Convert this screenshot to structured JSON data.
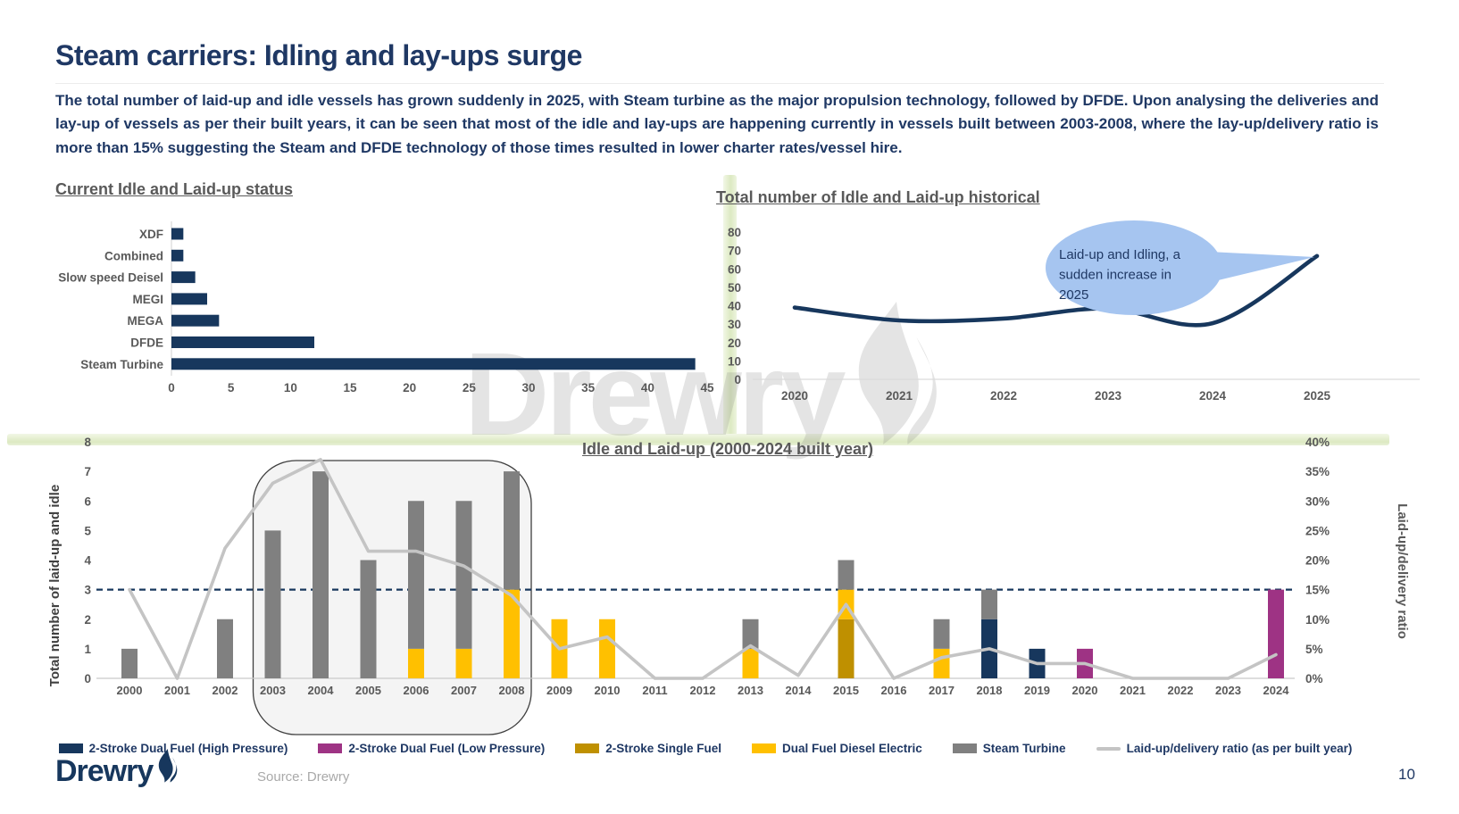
{
  "slide": {
    "title": "Steam carriers: Idling and lay-ups surge",
    "body_text": "The total number of laid-up and idle vessels has grown suddenly in 2025, with Steam turbine as the major propulsion technology, followed by DFDE. Upon analysing the deliveries and lay-up of vessels as per their built years, it can be seen that most of the idle and lay-ups are happening currently in vessels built between 2003-2008, where the lay-up/delivery ratio is more than 15% suggesting the Steam and DFDE technology of those times resulted in lower charter rates/vessel hire.",
    "watermark_text": "Drewry",
    "logo_text": "Drewry",
    "source": "Source: Drewry",
    "page_number": "10"
  },
  "colors": {
    "navy": "#17375D",
    "title_navy": "#1F3864",
    "heading_gray": "#595959",
    "tick_gray": "#595959",
    "axis_label_dark": "#404040",
    "axis_line": "#D9D9D9",
    "ratio_line_gray": "#C4C4C4",
    "callout_fill": "#A6C5F0",
    "highlight_stroke": "#3F3F3F",
    "watermark_gray": "#7B7B7B",
    "source_gray": "#A9A9A9"
  },
  "chart_data": [
    {
      "id": "current-idle-laidup-status",
      "type": "bar",
      "orientation": "horizontal",
      "title": "Current Idle and Laid-up status",
      "categories": [
        "XDF",
        "Combined",
        "Slow speed Deisel",
        "MEGI",
        "MEGA",
        "DFDE",
        "Steam Turbine"
      ],
      "values": [
        1,
        1,
        2,
        3,
        4,
        12,
        44
      ],
      "xlim": [
        0,
        45
      ],
      "xticks": [
        0,
        5,
        10,
        15,
        20,
        25,
        30,
        35,
        40,
        45
      ],
      "bar_color": "#17375D",
      "grid": false,
      "legend": "none"
    },
    {
      "id": "idle-laidup-historical",
      "type": "line",
      "title": "Total number of Idle and Laid-up historical",
      "x": [
        2020,
        2021,
        2022,
        2023,
        2024,
        2025
      ],
      "values": [
        39,
        32,
        33,
        38.5,
        30.5,
        67
      ],
      "ylim": [
        0,
        80
      ],
      "yticks": [
        0,
        10,
        20,
        30,
        40,
        50,
        60,
        70,
        80
      ],
      "line_color": "#17375D",
      "grid": false,
      "legend": "none",
      "annotation": {
        "text": "Laid-up and Idling, a sudden increase in 2025",
        "lines": [
          "Laid-up and Idling, a",
          "sudden increase in",
          "2025"
        ],
        "fill": "#A6C5F0",
        "text_color": "#1F3864",
        "points_to": 2025
      }
    },
    {
      "id": "idle-laidup-built-year",
      "type": "bar",
      "subtype": "stacked-bar-with-line",
      "title": "Idle and Laid-up (2000-2024 built year)",
      "categories": [
        2000,
        2001,
        2002,
        2003,
        2004,
        2005,
        2006,
        2007,
        2008,
        2009,
        2010,
        2011,
        2012,
        2013,
        2014,
        2015,
        2016,
        2017,
        2018,
        2019,
        2020,
        2021,
        2022,
        2023,
        2024
      ],
      "series": [
        {
          "name": "2-Stroke Dual Fuel (High Pressure)",
          "color": "#17375D",
          "values": [
            0,
            0,
            0,
            0,
            0,
            0,
            0,
            0,
            0,
            0,
            0,
            0,
            0,
            0,
            0,
            0,
            0,
            0,
            2,
            1,
            0,
            0,
            0,
            0,
            0
          ]
        },
        {
          "name": "2-Stroke Dual Fuel (Low Pressure)",
          "color": "#9E3384",
          "values": [
            0,
            0,
            0,
            0,
            0,
            0,
            0,
            0,
            0,
            0,
            0,
            0,
            0,
            0,
            0,
            0,
            0,
            0,
            0,
            0,
            1,
            0,
            0,
            0,
            3
          ]
        },
        {
          "name": "2-Stroke Single Fuel",
          "color": "#BF9000",
          "values": [
            0,
            0,
            0,
            0,
            0,
            0,
            0,
            0,
            0,
            0,
            0,
            0,
            0,
            0,
            0,
            2,
            0,
            0,
            0,
            0,
            0,
            0,
            0,
            0,
            0
          ]
        },
        {
          "name": "Dual Fuel Diesel Electric",
          "color": "#FFC000",
          "values": [
            0,
            0,
            0,
            0,
            0,
            0,
            1,
            1,
            3,
            2,
            2,
            0,
            0,
            1,
            0,
            1,
            0,
            1,
            0,
            0,
            0,
            0,
            0,
            0,
            0
          ]
        },
        {
          "name": "Steam Turbine",
          "color": "#808080",
          "values": [
            1,
            0,
            2,
            5,
            7,
            4,
            5,
            5,
            4,
            0,
            0,
            0,
            0,
            1,
            0,
            1,
            0,
            1,
            1,
            0,
            0,
            0,
            0,
            0,
            0
          ]
        }
      ],
      "line_series": {
        "name": "Laid-up/delivery ratio (as per built year)",
        "color": "#C4C4C4",
        "axis": "right",
        "values_pct": [
          15,
          0,
          22,
          33,
          37,
          21.5,
          21.5,
          19,
          14,
          5,
          7,
          0,
          0,
          5.5,
          0.5,
          12.5,
          0,
          3.5,
          5,
          2.5,
          2.5,
          0,
          0,
          0,
          4
        ]
      },
      "ylabel_left": "Total number of laid-up and idle",
      "ylabel_right": "Laid-up/delivery ratio",
      "ylim_left": [
        0,
        8
      ],
      "yticks_left": [
        0,
        1,
        2,
        3,
        4,
        5,
        6,
        7,
        8
      ],
      "ylim_right_pct": [
        0,
        40
      ],
      "yticks_right_pct": [
        0,
        5,
        10,
        15,
        20,
        25,
        30,
        35,
        40
      ],
      "reference_line_pct": 15,
      "reference_line_color": "#17375D",
      "highlight_box_years": {
        "from": 2003,
        "to": 2008
      },
      "grid": false,
      "legend_position": "bottom"
    }
  ]
}
